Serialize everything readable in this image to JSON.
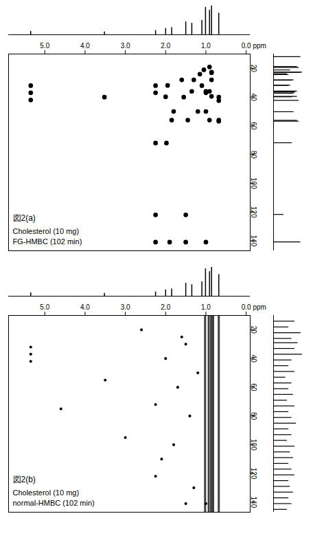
{
  "chart_data": [
    {
      "type": "scatter",
      "title": "図2(a)",
      "annotations": [
        "Cholesterol (10 mg)",
        "FG-HMBC (102 min)"
      ],
      "x_label": "ppm",
      "color": "#000000",
      "marker": "dot",
      "xlim": [
        5.9,
        -0.1
      ],
      "xticks": [
        {
          "value": 5,
          "label": "5.0"
        },
        {
          "value": 4,
          "label": "4.0"
        },
        {
          "value": 3,
          "label": "3.0"
        },
        {
          "value": 2,
          "label": "2.0"
        },
        {
          "value": 1,
          "label": "1.0"
        },
        {
          "value": 0,
          "label": "0.0"
        }
      ],
      "ylim": [
        10,
        147
      ],
      "yticks": [
        20,
        40,
        60,
        80,
        100,
        120,
        140
      ],
      "peaks": {
        "x": [
          5.35,
          5.35,
          5.35,
          3.52,
          2.25,
          2.25,
          2.25,
          1.98,
          1.5,
          1.5,
          1.9,
          2.25,
          2.25,
          1.0,
          1.0,
          1.0,
          1.0,
          0.91,
          0.91,
          0.91,
          0.86,
          0.86,
          0.86,
          0.86,
          0.68,
          0.68,
          0.68,
          0.68,
          1.15,
          1.3,
          1.1,
          1.2,
          1.45,
          1.35,
          1.05,
          1.55,
          1.8,
          2.0,
          1.95,
          1.6,
          1.85
        ],
        "y": [
          32,
          37,
          42,
          40,
          72,
          122,
          141,
          72,
          122,
          141,
          141,
          32,
          37,
          141,
          50,
          37,
          36,
          36,
          56,
          19,
          28,
          39.5,
          22.6,
          23,
          40,
          42.5,
          56.8,
          56,
          24,
          28,
          32,
          50,
          56,
          36,
          21,
          40,
          50,
          39.8,
          31.9,
          28,
          56
        ]
      },
      "proton_projection": {
        "ppm": [
          5.35,
          3.52,
          2.25,
          2.0,
          1.85,
          1.5,
          1.35,
          1.1,
          1.01,
          0.91,
          0.86,
          0.68
        ],
        "intensity": [
          0.12,
          0.1,
          0.15,
          0.22,
          0.25,
          0.45,
          0.4,
          0.5,
          0.95,
          0.85,
          1.0,
          0.75
        ]
      },
      "carbon_projection": {
        "ppm": [
          11.9,
          18.7,
          19.4,
          21.1,
          22.6,
          22.8,
          23.8,
          24.3,
          28.0,
          28.2,
          31.7,
          31.9,
          35.8,
          36.2,
          36.5,
          37.3,
          39.5,
          39.8,
          42.3,
          50.2,
          56.2,
          56.8,
          71.8,
          121.7,
          140.8
        ],
        "intensity": [
          0.8,
          0.7,
          0.75,
          0.5,
          0.85,
          0.8,
          0.4,
          0.45,
          0.6,
          0.55,
          0.5,
          0.45,
          0.7,
          0.6,
          0.65,
          0.6,
          0.7,
          0.55,
          0.75,
          0.6,
          0.7,
          0.75,
          0.55,
          0.3,
          0.8
        ]
      }
    },
    {
      "type": "scatter",
      "title": "図2(b)",
      "annotations": [
        "Cholesterol (10 mg)",
        "normal-HMBC (102 min)"
      ],
      "x_label": "ppm",
      "color": "#000000",
      "marker": "dot",
      "xlim": [
        5.9,
        -0.1
      ],
      "xticks": [
        {
          "value": 5,
          "label": "5.0"
        },
        {
          "value": 4,
          "label": "4.0"
        },
        {
          "value": 3,
          "label": "3.0"
        },
        {
          "value": 2,
          "label": "2.0"
        },
        {
          "value": 1,
          "label": "1.0"
        },
        {
          "value": 0,
          "label": "0.0"
        }
      ],
      "ylim": [
        10,
        147
      ],
      "yticks": [
        20,
        40,
        60,
        80,
        100,
        120,
        140
      ],
      "t1_noise_ppm": [
        1.02,
        0.93,
        0.87,
        0.82,
        0.68
      ],
      "peaks": {
        "x": [
          5.35,
          5.35,
          5.35,
          2.25,
          2.25,
          1.5,
          1.0,
          1.5,
          2.0,
          1.2,
          1.8,
          3.5,
          2.6,
          1.4,
          1.7,
          2.1,
          1.3,
          4.6,
          3.0,
          1.6
        ],
        "y": [
          32,
          37,
          42,
          72,
          122,
          141,
          141,
          30,
          40,
          50,
          100,
          55,
          20,
          80,
          60,
          110,
          130,
          75,
          95,
          25
        ]
      },
      "proton_projection": {
        "ppm": [
          5.35,
          3.52,
          2.25,
          2.0,
          1.85,
          1.5,
          1.35,
          1.1,
          1.01,
          0.91,
          0.86,
          0.68
        ],
        "intensity": [
          0.12,
          0.1,
          0.15,
          0.22,
          0.25,
          0.45,
          0.4,
          0.5,
          0.95,
          0.85,
          1.0,
          0.75
        ]
      },
      "carbon_projection": {
        "ppm": [
          14,
          18,
          22,
          26,
          29,
          33,
          37,
          41,
          45,
          49,
          53,
          57,
          61,
          65,
          69,
          73,
          77,
          81,
          85,
          89,
          93,
          97,
          101,
          105,
          109,
          113,
          117,
          121,
          125,
          129,
          133,
          137,
          141,
          145
        ],
        "intensity": [
          0.7,
          0.5,
          0.9,
          0.6,
          0.8,
          0.7,
          0.95,
          0.6,
          0.5,
          0.7,
          0.4,
          0.6,
          0.5,
          0.65,
          0.45,
          0.7,
          0.5,
          0.6,
          0.75,
          0.5,
          0.6,
          0.45,
          0.7,
          0.55,
          0.65,
          0.5,
          0.6,
          0.7,
          0.5,
          0.55,
          0.65,
          0.5,
          0.6,
          0.45
        ]
      }
    }
  ]
}
